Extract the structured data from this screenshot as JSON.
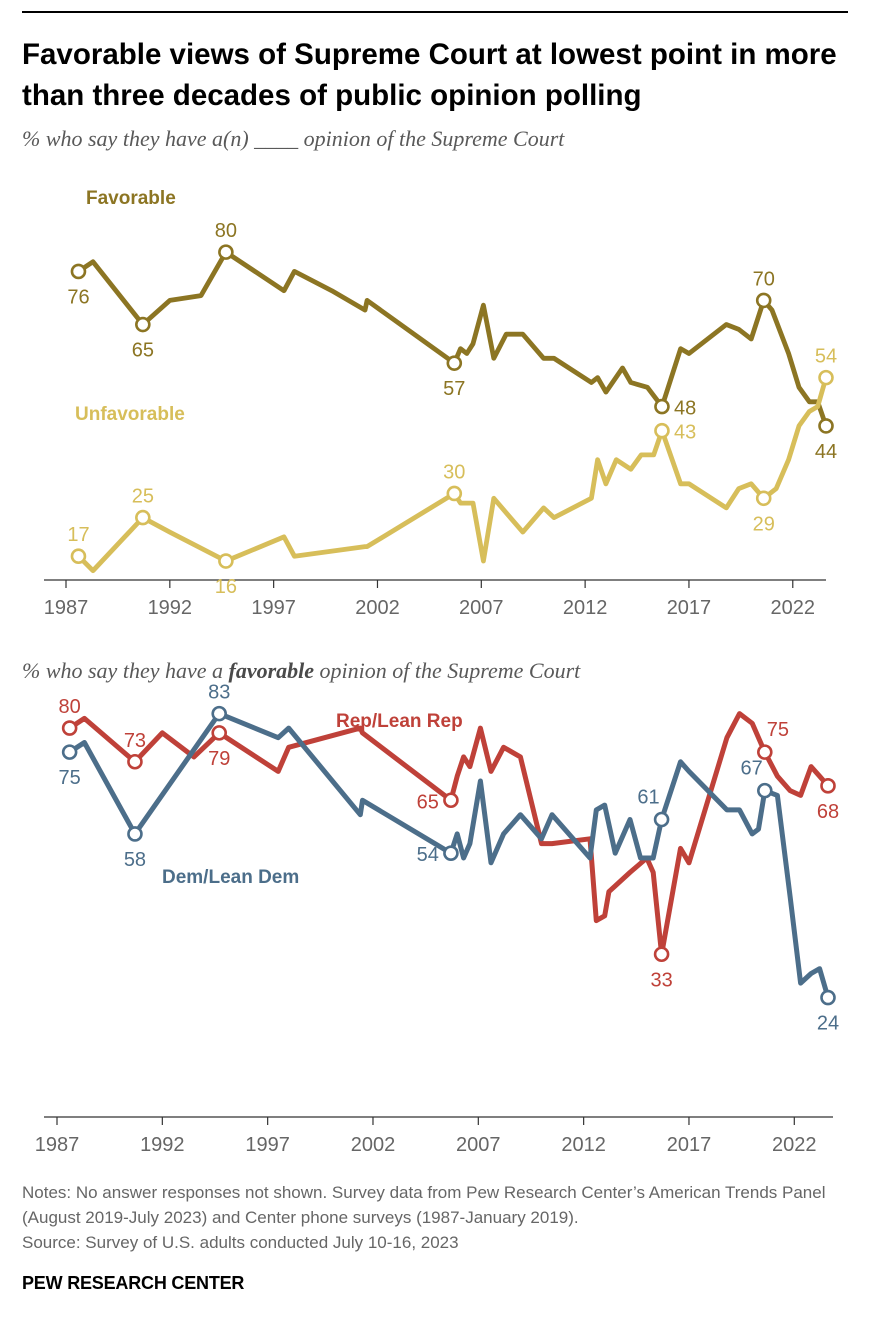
{
  "title": "Favorable views of Supreme Court at lowest point in more than three decades of public opinion polling",
  "subtitle_top": "% who say they have a(n) ____ opinion of the Supreme Court",
  "subtitle_bottom_pre": "% who say they have a ",
  "subtitle_bottom_em": "favorable",
  "subtitle_bottom_post": " opinion of the Supreme Court",
  "notes": "Notes: No answer responses not shown. Survey data from Pew Research Center’s American Trends Panel (August 2019-July 2023) and Center phone surveys (1987-January 2019).",
  "source": "Source: Survey of U.S. adults conducted July 10-16, 2023",
  "brand": "PEW RESEARCH CENTER",
  "chart_data": [
    {
      "type": "line",
      "subtitle": "% who say they have a(n) ____ opinion of the Supreme Court",
      "x_ticks": [
        1987,
        1992,
        1997,
        2002,
        2007,
        2012,
        2017,
        2022
      ],
      "xlim": [
        1987,
        2023.6
      ],
      "ylim": [
        10,
        85
      ],
      "grid": false,
      "series": [
        {
          "name": "Favorable",
          "color": "#8c7523",
          "points": [
            [
              1987.6,
              76
            ],
            [
              1988.3,
              78
            ],
            [
              1990.7,
              65
            ],
            [
              1992,
              70
            ],
            [
              1993.5,
              71
            ],
            [
              1994.7,
              80
            ],
            [
              1997.5,
              72
            ],
            [
              1998,
              76
            ],
            [
              1999.8,
              72
            ],
            [
              2001.4,
              68
            ],
            [
              2001.5,
              70
            ],
            [
              2005.7,
              57
            ],
            [
              2006,
              60
            ],
            [
              2006.3,
              59
            ],
            [
              2006.6,
              61
            ],
            [
              2007.1,
              69
            ],
            [
              2007.6,
              58
            ],
            [
              2008.2,
              63
            ],
            [
              2009,
              63
            ],
            [
              2010,
              58
            ],
            [
              2010.5,
              58
            ],
            [
              2012.3,
              53
            ],
            [
              2012.6,
              54
            ],
            [
              2013,
              51
            ],
            [
              2013.8,
              56
            ],
            [
              2014.2,
              53
            ],
            [
              2015,
              52
            ],
            [
              2015.7,
              48
            ],
            [
              2016.6,
              60
            ],
            [
              2017,
              59
            ],
            [
              2018.8,
              65
            ],
            [
              2019.4,
              64
            ],
            [
              2020,
              62
            ],
            [
              2020.6,
              70
            ],
            [
              2021,
              68
            ],
            [
              2021.8,
              59
            ],
            [
              2022.3,
              52
            ],
            [
              2022.8,
              49
            ],
            [
              2023.2,
              49
            ],
            [
              2023.6,
              44
            ]
          ],
          "labels": [
            [
              1987.6,
              76,
              "below"
            ],
            [
              1990.7,
              65,
              "below"
            ],
            [
              1994.7,
              80,
              "above"
            ],
            [
              2005.7,
              57,
              "below"
            ],
            [
              2015.7,
              48,
              "right"
            ],
            [
              2020.6,
              70,
              "above"
            ],
            [
              2023.6,
              44,
              "below"
            ]
          ]
        },
        {
          "name": "Unfavorable",
          "color": "#d7be5a",
          "points": [
            [
              1987.6,
              17
            ],
            [
              1988.3,
              14
            ],
            [
              1990.7,
              25
            ],
            [
              1992,
              22
            ],
            [
              1994.7,
              16
            ],
            [
              1997.5,
              21
            ],
            [
              1998,
              17
            ],
            [
              2001.4,
              19
            ],
            [
              2001.5,
              19
            ],
            [
              2005.7,
              30
            ],
            [
              2006,
              28
            ],
            [
              2006.3,
              28
            ],
            [
              2006.6,
              28
            ],
            [
              2007.1,
              16
            ],
            [
              2007.6,
              29
            ],
            [
              2008.2,
              26
            ],
            [
              2009,
              22
            ],
            [
              2010,
              27
            ],
            [
              2010.5,
              25
            ],
            [
              2012.3,
              29
            ],
            [
              2012.6,
              37
            ],
            [
              2013,
              32
            ],
            [
              2013.5,
              37
            ],
            [
              2014.2,
              35
            ],
            [
              2014.7,
              38
            ],
            [
              2015.3,
              38
            ],
            [
              2015.7,
              43
            ],
            [
              2016.6,
              32
            ],
            [
              2017,
              32
            ],
            [
              2018.8,
              27
            ],
            [
              2019.4,
              31
            ],
            [
              2020,
              32
            ],
            [
              2020.6,
              29
            ],
            [
              2021.2,
              31
            ],
            [
              2021.8,
              37
            ],
            [
              2022.3,
              44
            ],
            [
              2022.8,
              47
            ],
            [
              2023.2,
              48
            ],
            [
              2023.6,
              54
            ]
          ],
          "labels": [
            [
              1987.6,
              17,
              "above"
            ],
            [
              1990.7,
              25,
              "above"
            ],
            [
              1994.7,
              16,
              "below"
            ],
            [
              2005.7,
              30,
              "above"
            ],
            [
              2015.7,
              43,
              "right"
            ],
            [
              2020.6,
              29,
              "below"
            ],
            [
              2023.6,
              54,
              "above"
            ]
          ]
        }
      ]
    },
    {
      "type": "line",
      "subtitle": "% who say they have a favorable opinion of the Supreme Court",
      "x_ticks": [
        1987,
        1992,
        1997,
        2002,
        2007,
        2012,
        2017,
        2022
      ],
      "xlim": [
        1987,
        2023.6
      ],
      "ylim": [
        5,
        85
      ],
      "grid": false,
      "series": [
        {
          "name": "Rep/Lean Rep",
          "color": "#bf4139",
          "points": [
            [
              1987.6,
              80
            ],
            [
              1988.3,
              82
            ],
            [
              1990.7,
              73
            ],
            [
              1992,
              79
            ],
            [
              1993.5,
              74
            ],
            [
              1994.7,
              79
            ],
            [
              1997.5,
              71
            ],
            [
              1998,
              76
            ],
            [
              2001.4,
              80
            ],
            [
              2001.5,
              79
            ],
            [
              2005.7,
              65
            ],
            [
              2006,
              70
            ],
            [
              2006.3,
              74
            ],
            [
              2006.6,
              72
            ],
            [
              2007.1,
              80
            ],
            [
              2007.6,
              71
            ],
            [
              2008.2,
              76
            ],
            [
              2009,
              74
            ],
            [
              2010,
              56
            ],
            [
              2010.5,
              56
            ],
            [
              2012.3,
              57
            ],
            [
              2012.6,
              40
            ],
            [
              2013,
              41
            ],
            [
              2013.2,
              46
            ],
            [
              2014.2,
              50
            ],
            [
              2015,
              53
            ],
            [
              2015.3,
              50
            ],
            [
              2015.7,
              33
            ],
            [
              2016.6,
              55
            ],
            [
              2017,
              52
            ],
            [
              2018.8,
              78
            ],
            [
              2019.4,
              83
            ],
            [
              2020,
              81
            ],
            [
              2020.6,
              75
            ],
            [
              2021.2,
              70
            ],
            [
              2021.8,
              67
            ],
            [
              2022.3,
              66
            ],
            [
              2022.8,
              72
            ],
            [
              2023.2,
              70
            ],
            [
              2023.6,
              68
            ]
          ],
          "labels": [
            [
              1987.6,
              80,
              "above"
            ],
            [
              1990.7,
              73,
              "above"
            ],
            [
              1994.7,
              79,
              "below"
            ],
            [
              2005.7,
              65,
              "left"
            ],
            [
              2015.7,
              33,
              "below"
            ],
            [
              2020.6,
              75,
              "above-right"
            ],
            [
              2023.6,
              68,
              "below"
            ]
          ]
        },
        {
          "name": "Dem/Lean Dem",
          "color": "#4c6e8a",
          "points": [
            [
              1987.6,
              75
            ],
            [
              1988.3,
              77
            ],
            [
              1990.7,
              58
            ],
            [
              1994.7,
              83
            ],
            [
              1997.5,
              78
            ],
            [
              1998,
              80
            ],
            [
              2001.4,
              62
            ],
            [
              2001.5,
              65
            ],
            [
              2005.7,
              54
            ],
            [
              2006,
              58
            ],
            [
              2006.3,
              53
            ],
            [
              2006.6,
              56
            ],
            [
              2007.1,
              69
            ],
            [
              2007.6,
              52
            ],
            [
              2008.2,
              58
            ],
            [
              2009,
              62
            ],
            [
              2010,
              57
            ],
            [
              2010.5,
              62
            ],
            [
              2012.3,
              53
            ],
            [
              2012.6,
              63
            ],
            [
              2013,
              64
            ],
            [
              2013.5,
              54
            ],
            [
              2014.2,
              61
            ],
            [
              2014.7,
              53
            ],
            [
              2015.3,
              53
            ],
            [
              2015.7,
              61
            ],
            [
              2016.6,
              73
            ],
            [
              2017,
              71
            ],
            [
              2018.8,
              63
            ],
            [
              2019.4,
              63
            ],
            [
              2020,
              58
            ],
            [
              2020.3,
              59
            ],
            [
              2020.6,
              67
            ],
            [
              2021.2,
              66
            ],
            [
              2021.8,
              45
            ],
            [
              2022.3,
              27
            ],
            [
              2022.8,
              29
            ],
            [
              2023.2,
              30
            ],
            [
              2023.6,
              24
            ]
          ],
          "labels": [
            [
              1987.6,
              75,
              "below"
            ],
            [
              1990.7,
              58,
              "below"
            ],
            [
              1994.7,
              83,
              "above"
            ],
            [
              2005.7,
              54,
              "left"
            ],
            [
              2015.7,
              61,
              "above-left"
            ],
            [
              2020.6,
              67,
              "above-left"
            ],
            [
              2023.6,
              24,
              "below"
            ]
          ]
        }
      ]
    }
  ]
}
